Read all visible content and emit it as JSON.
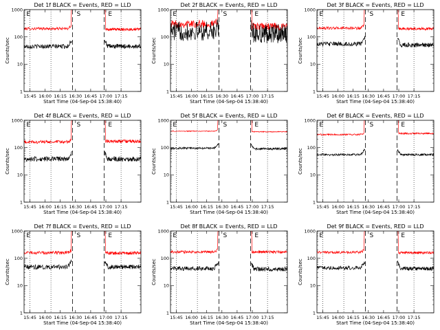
{
  "chart_data": [
    {
      "type": "line",
      "title": "Det 1f BLACK = Events, RED = LLD",
      "xlabel": "Start Time (04-Sep-04 15:38:40)",
      "ylabel": "Counts/sec",
      "yscale": "log",
      "ylim": [
        1,
        1000
      ],
      "xlim": [
        0,
        100
      ],
      "x_ticks": [
        "15:45",
        "16:00",
        "16:15",
        "16:30",
        "16:45",
        "17:00",
        "17:15"
      ],
      "y_ticks": [
        "1",
        "10",
        "100",
        "1000"
      ],
      "markers": [
        "E",
        "S",
        "E"
      ],
      "grid": false,
      "series": [
        {
          "color": "#ff0000",
          "pre": 200,
          "post": 190,
          "noise": 0.05,
          "spike": 1.3
        },
        {
          "color": "#000000",
          "pre": 45,
          "post": 45,
          "noise": 0.08,
          "spike": 1.8
        }
      ]
    },
    {
      "type": "line",
      "title": "Det 2f BLACK = Events, RED = LLD",
      "xlabel": "Start Time (04-Sep-04 15:38:40)",
      "ylabel": "Counts/sec",
      "yscale": "log",
      "ylim": [
        1,
        1000
      ],
      "xlim": [
        0,
        100
      ],
      "x_ticks": [
        "15:45",
        "16:00",
        "16:15",
        "16:30",
        "16:45",
        "17:00",
        "17:15"
      ],
      "y_ticks": [
        "1",
        "10",
        "100",
        "1000"
      ],
      "markers": [
        "E",
        "S",
        "E"
      ],
      "grid": false,
      "series": [
        {
          "color": "#ff0000",
          "pre": 300,
          "post": 240,
          "noise": 0.14,
          "spike": 1.3
        },
        {
          "color": "#000000",
          "pre": 160,
          "post": 130,
          "noise": 0.35,
          "spike": 1.5
        }
      ]
    },
    {
      "type": "line",
      "title": "Det 3f BLACK = Events, RED = LLD",
      "xlabel": "Start Time (04-Sep-04 15:38:40)",
      "ylabel": "Counts/sec",
      "yscale": "log",
      "ylim": [
        1,
        1000
      ],
      "xlim": [
        0,
        100
      ],
      "x_ticks": [
        "15:45",
        "16:00",
        "16:15",
        "16:30",
        "16:45",
        "17:00",
        "17:15"
      ],
      "y_ticks": [
        "1",
        "10",
        "100",
        "1000"
      ],
      "markers": [
        "E",
        "S",
        "E"
      ],
      "grid": false,
      "series": [
        {
          "color": "#ff0000",
          "pre": 210,
          "post": 200,
          "noise": 0.05,
          "spike": 1.3
        },
        {
          "color": "#000000",
          "pre": 55,
          "post": 50,
          "noise": 0.08,
          "spike": 1.8
        }
      ]
    },
    {
      "type": "line",
      "title": "Det 4f BLACK = Events, RED = LLD",
      "xlabel": "Start Time (04-Sep-04 15:38:40)",
      "ylabel": "Counts/sec",
      "yscale": "log",
      "ylim": [
        1,
        1000
      ],
      "xlim": [
        0,
        100
      ],
      "x_ticks": [
        "15:45",
        "16:00",
        "16:15",
        "16:30",
        "16:45",
        "17:00",
        "17:15"
      ],
      "y_ticks": [
        "1",
        "10",
        "100",
        "1000"
      ],
      "markers": [
        "E",
        "S",
        "E"
      ],
      "grid": false,
      "series": [
        {
          "color": "#ff0000",
          "pre": 160,
          "post": 170,
          "noise": 0.06,
          "spike": 1.3
        },
        {
          "color": "#000000",
          "pre": 38,
          "post": 38,
          "noise": 0.09,
          "spike": 1.8
        }
      ]
    },
    {
      "type": "line",
      "title": "Det 5f BLACK = Events, RED = LLD",
      "xlabel": "Start Time (04-Sep-04 15:38:40)",
      "ylabel": "Counts/sec",
      "yscale": "log",
      "ylim": [
        1,
        1000
      ],
      "xlim": [
        0,
        100
      ],
      "x_ticks": [
        "15:45",
        "16:00",
        "16:15",
        "16:30",
        "16:45",
        "17:00",
        "17:15"
      ],
      "y_ticks": [
        "1",
        "10",
        "100",
        "1000"
      ],
      "markers": [
        "E",
        "S",
        "E"
      ],
      "grid": false,
      "series": [
        {
          "color": "#ff0000",
          "pre": 400,
          "post": 380,
          "noise": 0.015,
          "spike": 1.15
        },
        {
          "color": "#000000",
          "pre": 95,
          "post": 90,
          "noise": 0.04,
          "spike": 1.5
        }
      ]
    },
    {
      "type": "line",
      "title": "Det 6f BLACK = Events, RED = LLD",
      "xlabel": "Start Time (04-Sep-04 15:38:40)",
      "ylabel": "Counts/sec",
      "yscale": "log",
      "ylim": [
        1,
        1000
      ],
      "xlim": [
        0,
        100
      ],
      "x_ticks": [
        "15:45",
        "16:00",
        "16:15",
        "16:30",
        "16:45",
        "17:00",
        "17:15"
      ],
      "y_ticks": [
        "1",
        "10",
        "100",
        "1000"
      ],
      "markers": [
        "E",
        "S",
        "E"
      ],
      "grid": false,
      "series": [
        {
          "color": "#ff0000",
          "pre": 300,
          "post": 330,
          "noise": 0.03,
          "spike": 1.2
        },
        {
          "color": "#000000",
          "pre": 55,
          "post": 55,
          "noise": 0.04,
          "spike": 1.6
        }
      ]
    },
    {
      "type": "line",
      "title": "Det 7f BLACK = Events, RED = LLD",
      "xlabel": "Start Time (04-Sep-04 15:38:40)",
      "ylabel": "Counts/sec",
      "yscale": "log",
      "ylim": [
        1,
        1000
      ],
      "xlim": [
        0,
        100
      ],
      "x_ticks": [
        "15:45",
        "16:00",
        "16:15",
        "16:30",
        "16:45",
        "17:00",
        "17:15"
      ],
      "y_ticks": [
        "1",
        "10",
        "100",
        "1000"
      ],
      "markers": [
        "E",
        "S",
        "E"
      ],
      "grid": false,
      "series": [
        {
          "color": "#ff0000",
          "pre": 160,
          "post": 155,
          "noise": 0.06,
          "spike": 1.3
        },
        {
          "color": "#000000",
          "pre": 48,
          "post": 48,
          "noise": 0.08,
          "spike": 1.8
        }
      ]
    },
    {
      "type": "line",
      "title": "Det 8f BLACK = Events, RED = LLD",
      "xlabel": "Start Time (04-Sep-04 15:38:40)",
      "ylabel": "Counts/sec",
      "yscale": "log",
      "ylim": [
        1,
        1000
      ],
      "xlim": [
        0,
        100
      ],
      "x_ticks": [
        "15:45",
        "16:00",
        "16:15",
        "16:30",
        "16:45",
        "17:00",
        "17:15"
      ],
      "y_ticks": [
        "1",
        "10",
        "100",
        "1000"
      ],
      "markers": [
        "E",
        "S",
        "E"
      ],
      "grid": false,
      "series": [
        {
          "color": "#ff0000",
          "pre": 170,
          "post": 170,
          "noise": 0.05,
          "spike": 1.3
        },
        {
          "color": "#000000",
          "pre": 42,
          "post": 40,
          "noise": 0.08,
          "spike": 1.8
        }
      ]
    },
    {
      "type": "line",
      "title": "Det 9f BLACK = Events, RED = LLD",
      "xlabel": "Start Time (04-Sep-04 15:38:40)",
      "ylabel": "Counts/sec",
      "yscale": "log",
      "ylim": [
        1,
        1000
      ],
      "xlim": [
        0,
        100
      ],
      "x_ticks": [
        "15:45",
        "16:00",
        "16:15",
        "16:30",
        "16:45",
        "17:00",
        "17:15"
      ],
      "y_ticks": [
        "1",
        "10",
        "100",
        "1000"
      ],
      "markers": [
        "E",
        "S",
        "E"
      ],
      "grid": false,
      "series": [
        {
          "color": "#ff0000",
          "pre": 165,
          "post": 160,
          "noise": 0.05,
          "spike": 1.3
        },
        {
          "color": "#000000",
          "pre": 45,
          "post": 42,
          "noise": 0.07,
          "spike": 1.8
        }
      ]
    }
  ]
}
